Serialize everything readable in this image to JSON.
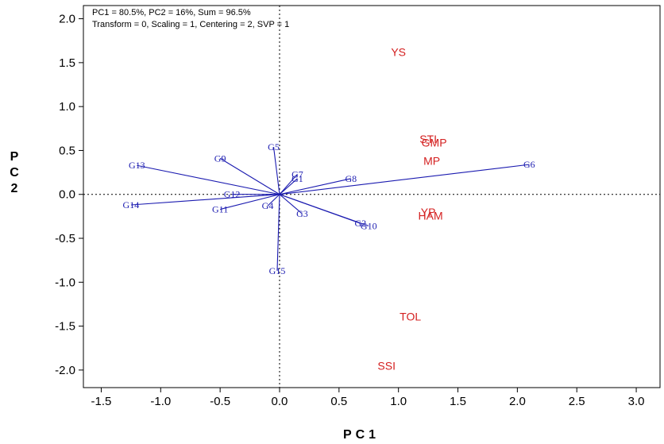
{
  "chart_data": {
    "type": "scatter",
    "subtype": "GGE biplot",
    "info_lines": [
      "PC1 = 80.5%, PC2 = 16%, Sum = 96.5%",
      "Transform = 0, Scaling = 1, Centering = 2, SVP = 1"
    ],
    "xlabel": "PC1",
    "ylabel": "PC2",
    "xlim": [
      -1.65,
      3.2
    ],
    "ylim": [
      -2.2,
      2.15
    ],
    "xticks": [
      -1.5,
      -1.0,
      -0.5,
      0.0,
      0.5,
      1.0,
      1.5,
      2.0,
      2.5,
      3.0
    ],
    "xtick_labels": [
      "-1.5",
      "-1.0",
      "-0.5",
      "0.0",
      "0.5",
      "1.0",
      "1.5",
      "2.0",
      "2.5",
      "3.0"
    ],
    "yticks": [
      2.0,
      1.5,
      1.0,
      0.5,
      0.0,
      -0.5,
      -1.0,
      -1.5,
      -2.0
    ],
    "ytick_labels": [
      "2.0",
      "1.5",
      "1.0",
      "0.5",
      "0.0",
      "-0.5",
      "-1.0",
      "-1.5",
      "-2.0"
    ],
    "reference_lines": {
      "x": 0,
      "y": 0,
      "style": "dotted"
    },
    "genotypes": [
      {
        "label": "G1",
        "x": 0.15,
        "y": 0.18
      },
      {
        "label": "G2",
        "x": 0.68,
        "y": -0.33
      },
      {
        "label": "G3",
        "x": 0.19,
        "y": -0.22
      },
      {
        "label": "G4",
        "x": -0.1,
        "y": -0.13
      },
      {
        "label": "G5",
        "x": -0.05,
        "y": 0.54
      },
      {
        "label": "G6",
        "x": 2.1,
        "y": 0.34
      },
      {
        "label": "G7",
        "x": 0.15,
        "y": 0.23
      },
      {
        "label": "G8",
        "x": 0.6,
        "y": 0.18
      },
      {
        "label": "G9",
        "x": -0.5,
        "y": 0.41
      },
      {
        "label": "G10",
        "x": 0.75,
        "y": -0.36
      },
      {
        "label": "G11",
        "x": -0.5,
        "y": -0.17
      },
      {
        "label": "G12",
        "x": -0.4,
        "y": 0.0
      },
      {
        "label": "G13",
        "x": -1.2,
        "y": 0.33
      },
      {
        "label": "G14",
        "x": -1.25,
        "y": -0.12
      },
      {
        "label": "G15",
        "x": -0.02,
        "y": -0.87
      }
    ],
    "traits": [
      {
        "label": "YS",
        "x": 1.0,
        "y": 1.62
      },
      {
        "label": "STI",
        "x": 1.25,
        "y": 0.63
      },
      {
        "label": "GMP",
        "x": 1.3,
        "y": 0.59
      },
      {
        "label": "MP",
        "x": 1.28,
        "y": 0.38
      },
      {
        "label": "YP",
        "x": 1.25,
        "y": -0.2
      },
      {
        "label": "HAM",
        "x": 1.27,
        "y": -0.24
      },
      {
        "label": "TOL",
        "x": 1.1,
        "y": -1.39
      },
      {
        "label": "SSI",
        "x": 0.9,
        "y": -1.95
      }
    ],
    "colors": {
      "genotype": "#1b1bb0",
      "trait": "#d42020",
      "axis": "#000000"
    }
  }
}
